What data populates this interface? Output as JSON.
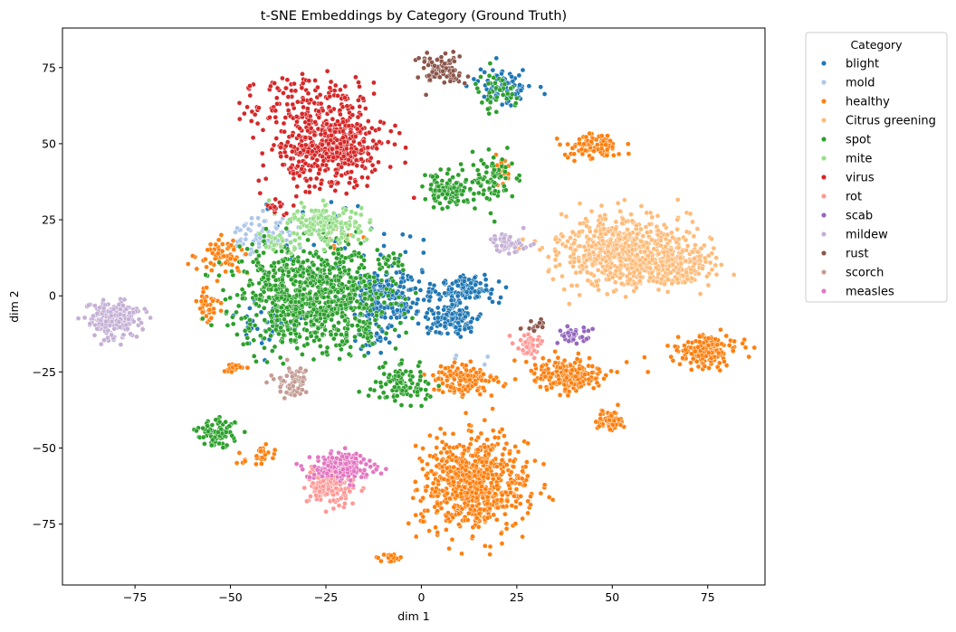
{
  "chart_data": {
    "type": "scatter",
    "title": "t-SNE Embeddings by Category (Ground Truth)",
    "xlabel": "dim 1",
    "ylabel": "dim 2",
    "xlim": [
      -94,
      90
    ],
    "ylim": [
      -95,
      88
    ],
    "x_ticks": [
      -75,
      -50,
      -25,
      0,
      25,
      50,
      75
    ],
    "y_ticks": [
      -75,
      -50,
      -25,
      0,
      25,
      50,
      75
    ],
    "grid": false,
    "legend": {
      "title": "Category",
      "placement": "outside-top-right"
    },
    "series": [
      {
        "name": "blight",
        "color": "#1f77b4",
        "clusters": [
          {
            "cx": -10,
            "cy": 0,
            "sx": 5,
            "sy": 5,
            "n": 220
          },
          {
            "cx": 12,
            "cy": 2,
            "sx": 4,
            "sy": 2.5,
            "n": 120
          },
          {
            "cx": 8,
            "cy": -7,
            "sx": 4,
            "sy": 3,
            "n": 130
          },
          {
            "cx": 22,
            "cy": 69,
            "sx": 3.5,
            "sy": 3,
            "n": 90
          },
          {
            "cx": -40,
            "cy": -8,
            "sx": 5,
            "sy": 4,
            "n": 35
          },
          {
            "cx": -25,
            "cy": 22,
            "sx": 12,
            "sy": 5,
            "n": 35
          },
          {
            "cx": -12,
            "cy": -15,
            "sx": 3,
            "sy": 2,
            "n": 25
          }
        ]
      },
      {
        "name": "mold",
        "color": "#aec7e8",
        "clusters": [
          {
            "cx": -41,
            "cy": 20,
            "sx": 4,
            "sy": 3.5,
            "n": 80
          },
          {
            "cx": 15,
            "cy": -20,
            "sx": 3,
            "sy": 2,
            "n": 4
          }
        ]
      },
      {
        "name": "healthy",
        "color": "#ff7f0e",
        "clusters": [
          {
            "cx": 14,
            "cy": -62,
            "sx": 7,
            "sy": 7.5,
            "n": 700
          },
          {
            "cx": 75,
            "cy": -18,
            "sx": 4,
            "sy": 2.5,
            "n": 160
          },
          {
            "cx": 38,
            "cy": -26,
            "sx": 5,
            "sy": 3,
            "n": 200
          },
          {
            "cx": 11,
            "cy": -28,
            "sx": 4.5,
            "sy": 3,
            "n": 130
          },
          {
            "cx": 45,
            "cy": 49,
            "sx": 3.5,
            "sy": 2,
            "n": 90
          },
          {
            "cx": 49,
            "cy": -41,
            "sx": 2.5,
            "sy": 2,
            "n": 50
          },
          {
            "cx": -52,
            "cy": 13,
            "sx": 3,
            "sy": 2.5,
            "n": 60
          },
          {
            "cx": -56,
            "cy": -3,
            "sx": 1.5,
            "sy": 3,
            "n": 40
          },
          {
            "cx": -50,
            "cy": -24,
            "sx": 2,
            "sy": 0.9,
            "n": 20
          },
          {
            "cx": -42,
            "cy": -53,
            "sx": 2.5,
            "sy": 1.5,
            "n": 25
          },
          {
            "cx": -8,
            "cy": -86,
            "sx": 1.5,
            "sy": 1,
            "n": 20
          },
          {
            "cx": 21,
            "cy": 41,
            "sx": 1.5,
            "sy": 2.5,
            "n": 30
          },
          {
            "cx": -20,
            "cy": 20,
            "sx": 3,
            "sy": 2,
            "n": 15
          }
        ]
      },
      {
        "name": "Citrus greening",
        "color": "#ffbb78",
        "clusters": [
          {
            "cx": 52,
            "cy": 15,
            "sx": 8,
            "sy": 6,
            "n": 600
          },
          {
            "cx": 66,
            "cy": 10,
            "sx": 5,
            "sy": 4,
            "n": 200
          }
        ]
      },
      {
        "name": "spot",
        "color": "#2ca02c",
        "clusters": [
          {
            "cx": -28,
            "cy": 0,
            "sx": 10,
            "sy": 8,
            "n": 900
          },
          {
            "cx": 7,
            "cy": 35,
            "sx": 3,
            "sy": 3,
            "n": 110
          },
          {
            "cx": 18,
            "cy": 38,
            "sx": 3,
            "sy": 4,
            "n": 80
          },
          {
            "cx": -5,
            "cy": -29,
            "sx": 4,
            "sy": 3,
            "n": 100
          },
          {
            "cx": -54,
            "cy": -45,
            "sx": 2.5,
            "sy": 2.5,
            "n": 80
          },
          {
            "cx": 20,
            "cy": 67,
            "sx": 3,
            "sy": 3,
            "n": 40
          },
          {
            "cx": -8,
            "cy": 12,
            "sx": 2,
            "sy": 2,
            "n": 15
          }
        ]
      },
      {
        "name": "mite",
        "color": "#98df8a",
        "clusters": [
          {
            "cx": -25,
            "cy": 24,
            "sx": 5,
            "sy": 3,
            "n": 160
          },
          {
            "cx": -37,
            "cy": 17,
            "sx": 3,
            "sy": 2,
            "n": 20
          }
        ]
      },
      {
        "name": "virus",
        "color": "#d62728",
        "clusters": [
          {
            "cx": -24,
            "cy": 48,
            "sx": 7,
            "sy": 6,
            "n": 450
          },
          {
            "cx": -30,
            "cy": 63,
            "sx": 9,
            "sy": 5,
            "n": 150
          },
          {
            "cx": -37,
            "cy": 29,
            "sx": 1.5,
            "sy": 1.5,
            "n": 15
          }
        ]
      },
      {
        "name": "rot",
        "color": "#ff9896",
        "clusters": [
          {
            "cx": -24,
            "cy": -62,
            "sx": 3,
            "sy": 3,
            "n": 150
          },
          {
            "cx": 28,
            "cy": -16,
            "sx": 2,
            "sy": 2,
            "n": 40
          }
        ]
      },
      {
        "name": "scab",
        "color": "#9467bd",
        "clusters": [
          {
            "cx": 40,
            "cy": -13,
            "sx": 2,
            "sy": 2,
            "n": 40
          }
        ]
      },
      {
        "name": "mildew",
        "color": "#c5b0d5",
        "clusters": [
          {
            "cx": -81,
            "cy": -8,
            "sx": 3.5,
            "sy": 3,
            "n": 220
          },
          {
            "cx": 23,
            "cy": 17,
            "sx": 2.5,
            "sy": 1.5,
            "n": 60
          }
        ]
      },
      {
        "name": "rust",
        "color": "#8c564b",
        "clusters": [
          {
            "cx": 5,
            "cy": 74,
            "sx": 3,
            "sy": 2.5,
            "n": 90
          },
          {
            "cx": 30,
            "cy": -10,
            "sx": 1.5,
            "sy": 1,
            "n": 15
          }
        ]
      },
      {
        "name": "scorch",
        "color": "#c49c94",
        "clusters": [
          {
            "cx": -34,
            "cy": -29,
            "sx": 2.5,
            "sy": 2.5,
            "n": 60
          }
        ]
      },
      {
        "name": "measles",
        "color": "#e377c2",
        "clusters": [
          {
            "cx": -21,
            "cy": -56,
            "sx": 4,
            "sy": 2.5,
            "n": 180
          }
        ]
      }
    ]
  }
}
